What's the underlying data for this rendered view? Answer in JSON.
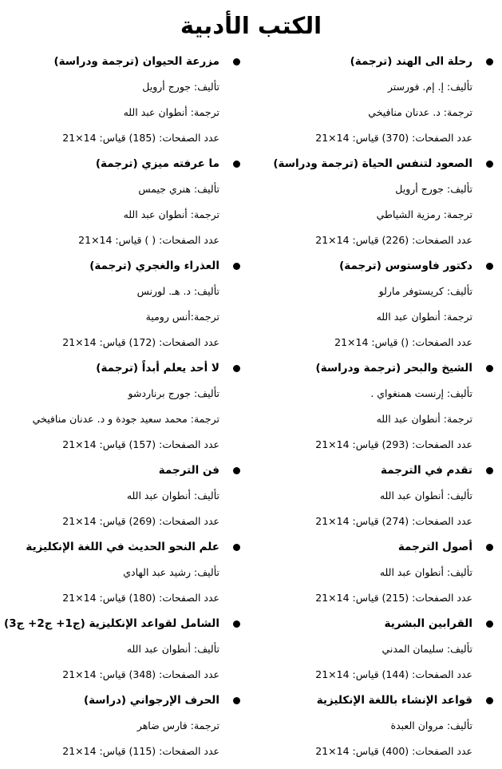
{
  "title": "الكتب الأدبية",
  "columns": [
    {
      "items": [
        {
          "lines": [
            "رحلة الى الهند (ترجمة)",
            "تأليف: إ. إم. فورستر",
            "ترجمة: د. عدنان منافيخي",
            "عدد الصفحات: (370) قياس: 14×21"
          ]
        },
        {
          "lines": [
            "الصعود لتنفس الحياة (ترجمة ودراسة)",
            "تأليف: جورج أرويل",
            "ترجمة: رمزية الشياطي",
            "عدد الصفحات: (226) قياس: 14×21"
          ]
        },
        {
          "lines": [
            "دكتور فاوستوس (ترجمة)",
            "تأليف: كريستوفر مارلو",
            "ترجمة: أنطوان عبد الله",
            "عدد الصفحات: () قياس: 14×21"
          ]
        },
        {
          "lines": [
            "الشيخ والبحر (ترجمة ودراسة)",
            "تأليف: إرنست همنغواي .",
            "ترجمة: أنطوان عبد الله",
            "عدد الصفحات: (293) قياس: 14×21"
          ]
        },
        {
          "lines": [
            "تقدم في الترجمة",
            "تأليف: أنطوان عبد الله",
            "عدد الصفحات: (274) قياس: 14×21"
          ]
        },
        {
          "lines": [
            "أصول الترجمة",
            "تأليف: أنطوان عبد الله",
            "عدد الصفحات: (215) قياس: 14×21"
          ]
        },
        {
          "lines": [
            "القرابين البشرية",
            "تأليف: سليمان المدني",
            "عدد الصفحات: (144) قياس: 14×21"
          ]
        },
        {
          "lines": [
            "قواعد الإنشاء باللغة الإنكليزية",
            "تأليف: مروان العبدة",
            "عدد الصفحات: (400) قياس: 14×21"
          ]
        }
      ]
    },
    {
      "items": [
        {
          "lines": [
            "مزرعة الحيوان (ترجمة ودراسة)",
            "تأليف: جورج أرويل",
            "ترجمة: أنطوان عبد الله",
            "عدد الصفحات: (185) قياس: 14×21"
          ]
        },
        {
          "lines": [
            "ما عرفته ميزي (ترجمة)",
            "تأليف: هنري جيمس",
            "ترجمة: أنطوان عبد الله",
            "عدد الصفحات: ( ) قياس: 14×21"
          ]
        },
        {
          "lines": [
            "العذراء والغجري (ترجمة)",
            "تأليف: د. هـ. لورنس",
            "ترجمة:أنس رومية",
            "عدد الصفحات: (172) قياس: 14×21"
          ]
        },
        {
          "lines": [
            "لا أحد يعلم أبداً (ترجمة)",
            "تأليف: جورج برناردشو",
            "ترجمة: محمد سعيد جودة و د. عدنان منافيخي",
            "عدد الصفحات: (157) قياس: 14×21"
          ]
        },
        {
          "lines": [
            "فن الترجمة",
            "تأليف: أنطوان عبد الله",
            "عدد الصفحات: (269) قياس: 14×21"
          ]
        },
        {
          "lines": [
            "علم النحو الحديث في اللغة الإنكليزية",
            "تأليف: رشيد عبد الهادي",
            "عدد الصفحات: (180) قياس: 14×21"
          ]
        },
        {
          "lines": [
            "الشامل لقواعد الإنكليزية (ج1+ ج2+ ج3)",
            "تأليف: أنطوان عبد الله",
            "عدد الصفحات: (348) قياس: 14×21"
          ]
        },
        {
          "lines": [
            "الحرف الإرجواني (دراسة)",
            "ترجمة: فارس ضاهر",
            "عدد الصفحات: (115) قياس: 14×21"
          ]
        }
      ]
    }
  ]
}
